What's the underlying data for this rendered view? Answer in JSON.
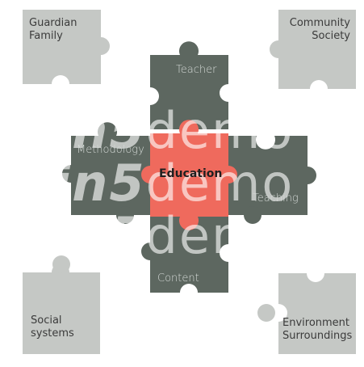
{
  "colors": {
    "grey": "#c5c8c5",
    "dark": "#5d6760",
    "center": "#ef6a5d"
  },
  "pieces": {
    "guardian": [
      "Guardian",
      "Family"
    ],
    "community": [
      "Community",
      "Society"
    ],
    "social": [
      "Social",
      "systems"
    ],
    "environment": [
      "Environment",
      "Surroundings"
    ],
    "teacher": "Teacher",
    "methodology": "Methodology",
    "education": "Education",
    "teaching": "Teaching",
    "content": "Content"
  },
  "watermark": {
    "brand": "in5",
    "word": "demo"
  }
}
